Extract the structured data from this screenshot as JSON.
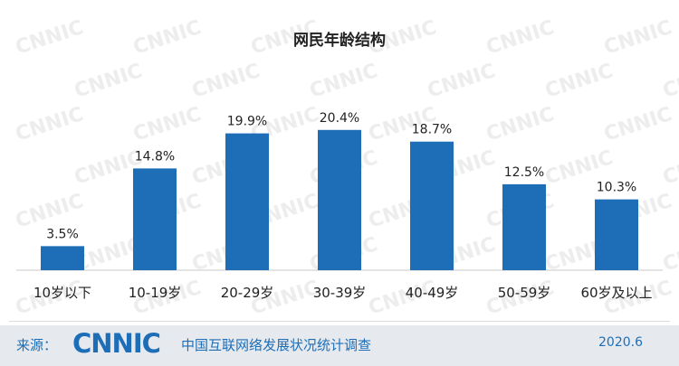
{
  "chart_data": {
    "type": "bar",
    "title": "网民年龄结构",
    "categories": [
      "10岁以下",
      "10-19岁",
      "20-29岁",
      "30-39岁",
      "40-49岁",
      "50-59岁",
      "60岁及以上"
    ],
    "values": [
      3.5,
      14.8,
      19.9,
      20.4,
      18.7,
      12.5,
      10.3
    ],
    "data_labels": [
      "3.5%",
      "14.8%",
      "19.9%",
      "20.4%",
      "18.7%",
      "12.5%",
      "10.3%"
    ],
    "xlabel": "",
    "ylabel": "",
    "ylim": [
      0,
      23
    ],
    "grid": false,
    "legend": "none",
    "bar_color": "#1d6eb7"
  },
  "footer": {
    "source_label": "来源：",
    "logo_text": "CNNIC",
    "org_name": "中国互联网络发展状况统计调查",
    "date": "2020.6"
  },
  "watermark": {
    "text": "CNNIC",
    "color": "#ededed"
  }
}
